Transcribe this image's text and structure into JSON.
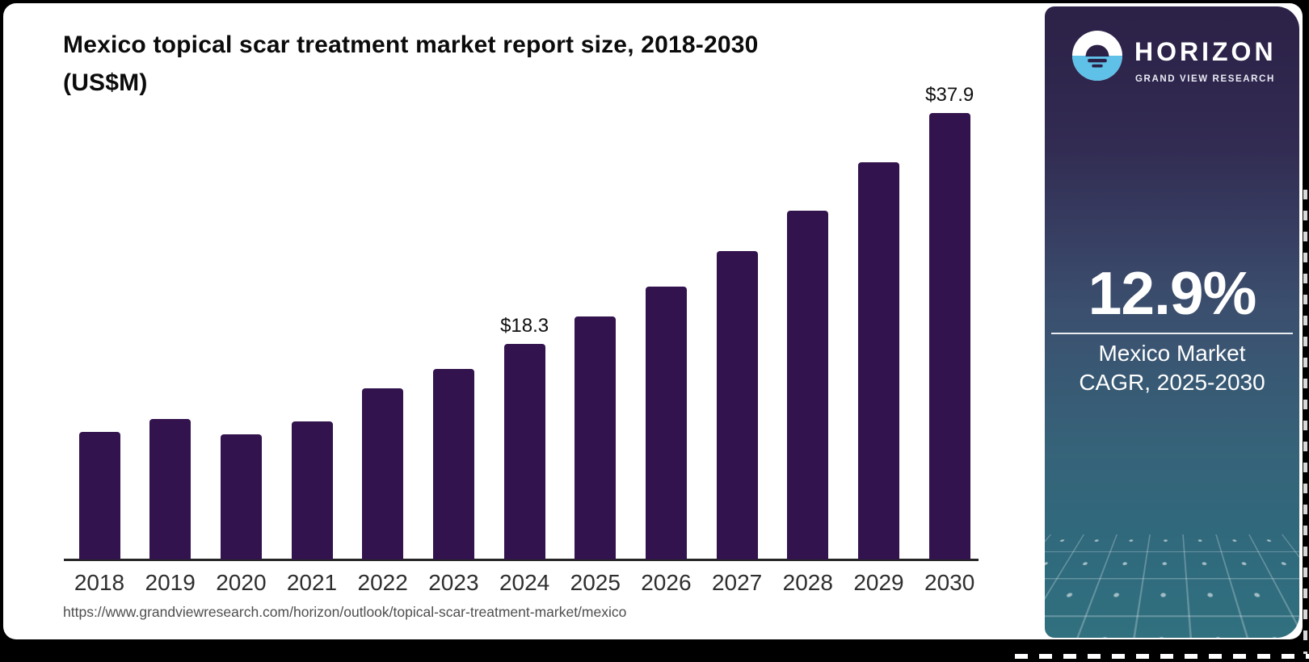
{
  "header": {
    "title_line1": "Mexico topical scar treatment market report size, 2018-2030",
    "title_line2": "(US$M)"
  },
  "source": {
    "url": "https://www.grandviewresearch.com/horizon/outlook/topical-scar-treatment-market/mexico"
  },
  "sidebar": {
    "brand": {
      "name": "HORIZON",
      "tagline": "GRAND VIEW RESEARCH",
      "logo_icon": "sunset-horizon-icon"
    },
    "stat": {
      "value": "12.9%",
      "label_line1": "Mexico Market",
      "label_line2": "CAGR, 2025-2030"
    },
    "colors": {
      "gradient_top": "#2c2147",
      "gradient_middle": "#3b4f6e",
      "gradient_bottom": "#31707f",
      "logo_blue": "#5fc0e8"
    }
  },
  "chart_data": {
    "type": "bar",
    "title": "Mexico topical scar treatment market report size, 2018-2030 (US$M)",
    "unit": "US$M",
    "categories": [
      "2018",
      "2019",
      "2020",
      "2021",
      "2022",
      "2023",
      "2024",
      "2025",
      "2026",
      "2027",
      "2028",
      "2029",
      "2030"
    ],
    "values": [
      10.8,
      11.9,
      10.6,
      11.7,
      14.5,
      16.2,
      18.3,
      20.6,
      23.2,
      26.2,
      29.6,
      33.7,
      37.9
    ],
    "value_labels": [
      {
        "category": "2024",
        "text": "$18.3"
      },
      {
        "category": "2030",
        "text": "$37.9"
      }
    ],
    "bar_color": "#33134d",
    "ylim": [
      0,
      40
    ],
    "grid": false,
    "legend": false,
    "xlabel": "",
    "ylabel": ""
  }
}
